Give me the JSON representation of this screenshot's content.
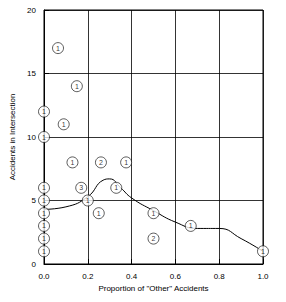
{
  "chart_data": {
    "type": "scatter",
    "x_label": "Proportion of \"Other\" Accidents",
    "y_label": "Accidents in Intersection",
    "xlim": [
      0,
      1
    ],
    "xticks": [
      {
        "value": 0,
        "label": "0.0"
      },
      {
        "value": 0.2,
        "label": "0.2"
      },
      {
        "value": 0.4,
        "label": "0.4"
      },
      {
        "value": 0.6,
        "label": "0.6"
      },
      {
        "value": 0.8,
        "label": "0.8"
      },
      {
        "value": 1,
        "label": "1.0"
      }
    ],
    "ylim": [
      0,
      20
    ],
    "yticks": [
      0,
      5,
      10,
      15,
      20
    ],
    "grid": true,
    "series": [
      {
        "type": "scatter",
        "marker": "circle",
        "color": "#000000",
        "x": [
          0.064,
          0.15,
          0.09,
          0,
          0,
          0.13,
          0.26,
          0.375,
          0.17,
          0.33,
          0,
          0,
          0.2,
          0,
          0.25,
          0.5,
          0,
          0,
          0,
          0.5,
          0.67,
          1.0
        ],
        "values": [
          17,
          14,
          11,
          12,
          10,
          8,
          8,
          8,
          6,
          6,
          6,
          5,
          5,
          4,
          4,
          4,
          3,
          2,
          1,
          2,
          3,
          1
        ],
        "counts": [
          1,
          1,
          1,
          1,
          1,
          1,
          2,
          1,
          3,
          1,
          1,
          1,
          1,
          1,
          1,
          1,
          1,
          1,
          1,
          2,
          1,
          1
        ]
      },
      {
        "type": "line",
        "line_style": "solid",
        "color": "#000000",
        "x": [
          0,
          0.1,
          0.2,
          0.27,
          0.3,
          0.35,
          0.4,
          0.5,
          0.6,
          0.7,
          0.8,
          0.9,
          1.0
        ],
        "values": [
          4.3,
          4.5,
          5.3,
          6.6,
          6.7,
          6.0,
          5.2,
          4.2,
          3.3,
          2.8,
          2.8,
          2.0,
          1.0
        ]
      }
    ]
  }
}
